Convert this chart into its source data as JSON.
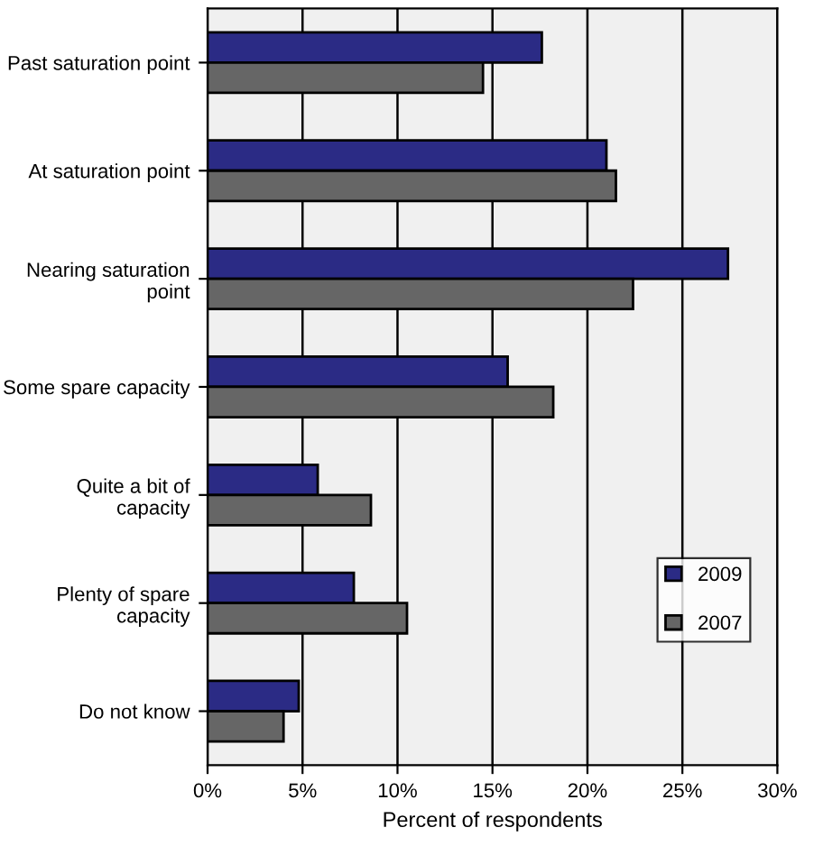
{
  "chart_data": {
    "type": "bar",
    "orientation": "horizontal",
    "xlabel": "Percent of respondents",
    "categories": [
      "Past saturation point",
      "At saturation point",
      "Nearing saturation point",
      "Some spare capacity",
      "Quite a bit of capacity",
      "Plenty of spare capacity",
      "Do not know"
    ],
    "series": [
      {
        "name": "2009",
        "color": "#2b2b85",
        "values": [
          17.6,
          21.0,
          27.4,
          15.8,
          5.8,
          7.7,
          4.8
        ]
      },
      {
        "name": "2007",
        "color": "#666666",
        "values": [
          14.5,
          21.5,
          22.4,
          18.2,
          8.6,
          10.5,
          4.0
        ]
      }
    ],
    "xlim": [
      0,
      30
    ],
    "xticks": [
      {
        "value": 0,
        "label": "0%"
      },
      {
        "value": 5,
        "label": "5%"
      },
      {
        "value": 10,
        "label": "10%"
      },
      {
        "value": 15,
        "label": "15%"
      },
      {
        "value": 20,
        "label": "20%"
      },
      {
        "value": 25,
        "label": "25%"
      },
      {
        "value": 30,
        "label": "30%"
      }
    ],
    "grid": "x",
    "legend": "bottom right"
  }
}
